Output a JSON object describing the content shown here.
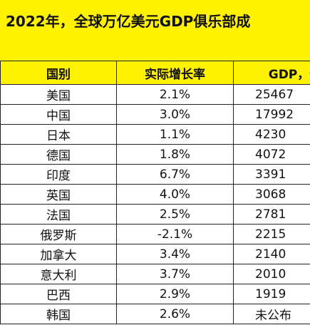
{
  "header": {
    "title": "2022年，全球万亿美元GDP俱乐部成"
  },
  "table": {
    "columns": [
      "国别",
      "实际增长率",
      "GDP，亿"
    ],
    "rows": [
      [
        "美国",
        "2.1%",
        "25467"
      ],
      [
        "中国",
        "3.0%",
        "17992"
      ],
      [
        "日本",
        "1.1%",
        "4230"
      ],
      [
        "德国",
        "1.8%",
        "4072"
      ],
      [
        "印度",
        "6.7%",
        "3391"
      ],
      [
        "英国",
        "4.0%",
        "3068"
      ],
      [
        "法国",
        "2.5%",
        "2781"
      ],
      [
        "俄罗斯",
        "-2.1%",
        "2215"
      ],
      [
        "加拿大",
        "3.4%",
        "2140"
      ],
      [
        "意大利",
        "3.7%",
        "2010"
      ],
      [
        "巴西",
        "2.9%",
        "1919"
      ],
      [
        "韩国",
        "2.6%",
        "未公布"
      ]
    ]
  }
}
